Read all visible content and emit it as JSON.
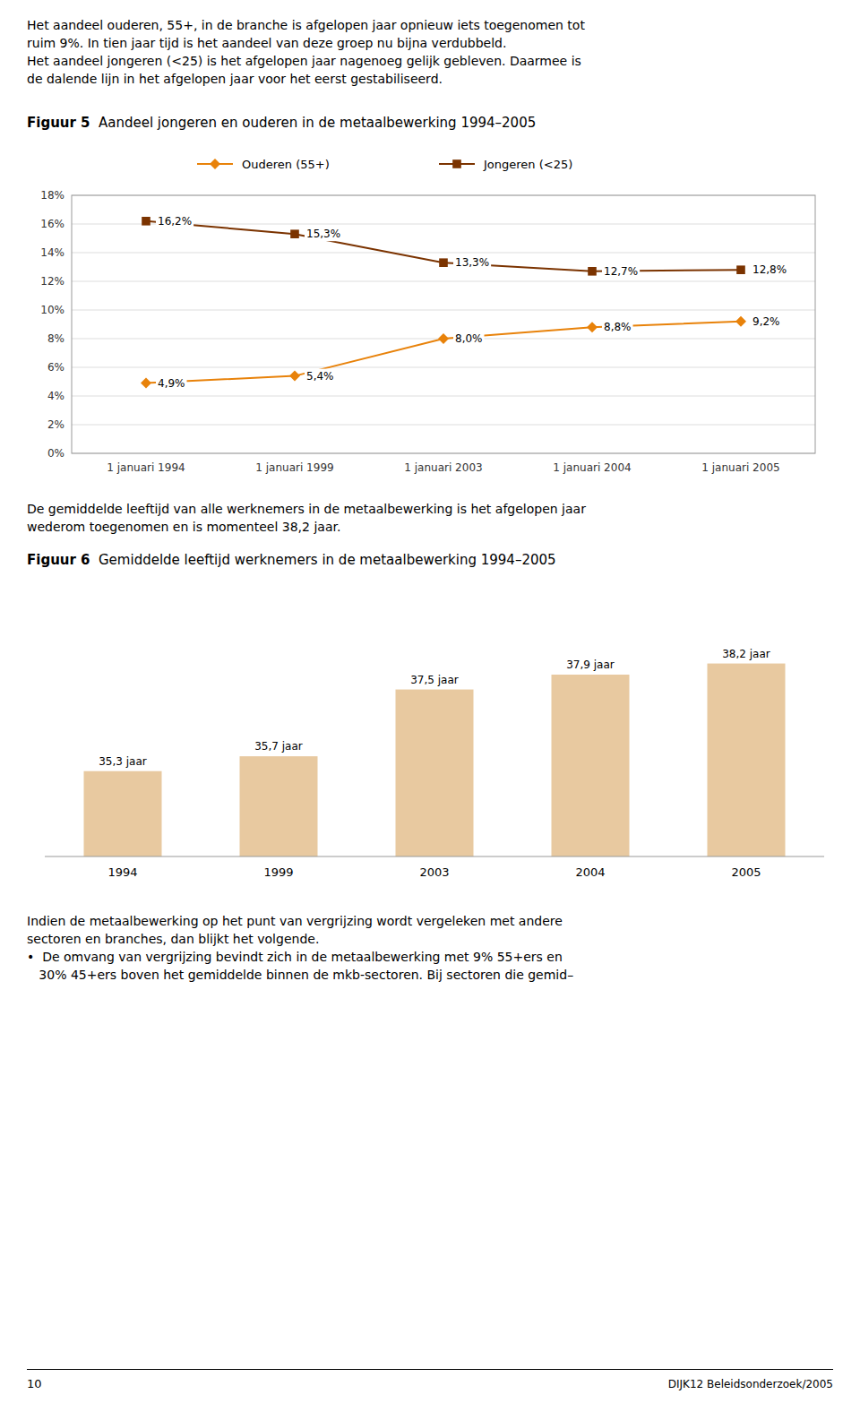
{
  "intro_text": [
    "Het aandeel ouderen, 55+, in de branche is afgelopen jaar opnieuw iets toegenomen tot",
    "ruim 9%. In tien jaar tijd is het aandeel van deze groep nu bijna verdubbeld.",
    "Het aandeel jongeren (<25) is het afgelopen jaar nagenoeg gelijk gebleven. Daarmee is",
    "de dalende lijn in het afgelopen jaar voor het eerst gestabiliseerd."
  ],
  "between_text": [
    "De gemiddelde leeftijd van alle werknemers in de metaalbewerking is het afgelopen jaar",
    "wederom toegenomen en is momenteel 38,2 jaar."
  ],
  "bottom_text": [
    "Indien de metaalbewerking op het punt van vergrijzing wordt vergeleken met andere",
    "sectoren en branches, dan blijkt het volgende.",
    "•  De omvang van vergrijzing bevindt zich in de metaalbewerking met 9% 55+ers en",
    "   30% 45+ers boven het gemiddelde binnen de mkb-sectoren. Bij sectoren die gemid–"
  ],
  "footer_left": "10",
  "footer_right": "DIJK12 Beleidsonderzoek/2005",
  "chart_data": [
    {
      "type": "line",
      "figure_label": "Figuur 5",
      "title": "Aandeel jongeren en ouderen in de metaalbewerking 1994–2005",
      "categories": [
        "1 januari 1994",
        "1 januari 1999",
        "1 januari 2003",
        "1 januari 2004",
        "1 januari 2005"
      ],
      "series": [
        {
          "name": "Ouderen (55+)",
          "color": "#E8820A",
          "marker": "diamond",
          "values": [
            4.9,
            5.4,
            8.0,
            8.8,
            9.2
          ],
          "value_labels": [
            "4,9%",
            "5,4%",
            "8,0%",
            "8,8%",
            "9,2%"
          ]
        },
        {
          "name": "Jongeren (<25)",
          "color": "#7B3300",
          "marker": "square",
          "values": [
            16.2,
            15.3,
            13.3,
            12.7,
            12.8
          ],
          "value_labels": [
            "16,2%",
            "15,3%",
            "13,3%",
            "12,7%",
            "12,8%"
          ]
        }
      ],
      "ylim": [
        0,
        18
      ],
      "yticks": [
        {
          "value": 0,
          "label": "0%"
        },
        {
          "value": 2,
          "label": "2%"
        },
        {
          "value": 4,
          "label": "4%"
        },
        {
          "value": 6,
          "label": "6%"
        },
        {
          "value": 8,
          "label": "8%"
        },
        {
          "value": 10,
          "label": "10%"
        },
        {
          "value": 12,
          "label": "12%"
        },
        {
          "value": 14,
          "label": "14%"
        },
        {
          "value": 16,
          "label": "16%"
        },
        {
          "value": 18,
          "label": "18%"
        }
      ],
      "grid": true,
      "legend": "top",
      "data_labels": true
    },
    {
      "type": "bar",
      "figure_label": "Figuur 6",
      "title": "Gemiddelde leeftijd werknemers in de metaalbewerking 1994–2005",
      "categories": [
        "1994",
        "1999",
        "2003",
        "2004",
        "2005"
      ],
      "values": [
        35.3,
        35.7,
        37.5,
        37.9,
        38.2
      ],
      "value_labels": [
        "35,3 jaar",
        "35,7 jaar",
        "37,5 jaar",
        "37,9 jaar",
        "38,2 jaar"
      ],
      "color": "#E8C9A0",
      "ylim": [
        33,
        40
      ],
      "tick_labels": "x",
      "grid": false,
      "data_labels": true
    }
  ]
}
